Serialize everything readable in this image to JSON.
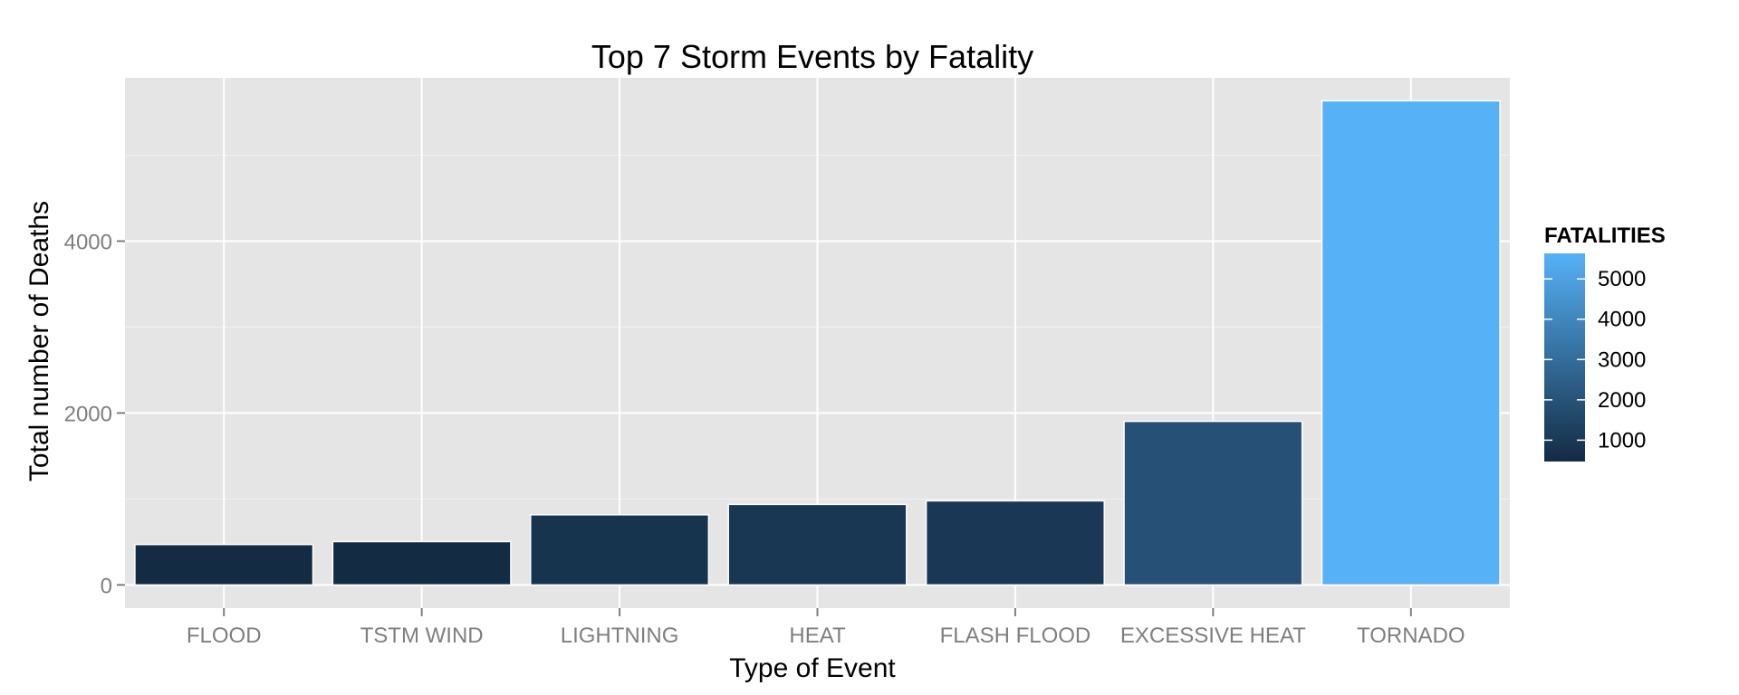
{
  "chart_data": {
    "type": "bar",
    "title": "Top 7 Storm Events by Fatality",
    "xlabel": "Type of Event",
    "ylabel": "Total number of Deaths",
    "categories": [
      "FLOOD",
      "TSTM WIND",
      "LIGHTNING",
      "HEAT",
      "FLASH FLOOD",
      "EXCESSIVE HEAT",
      "TORNADO"
    ],
    "values": [
      470,
      504,
      816,
      937,
      978,
      1903,
      5633
    ],
    "ylim": [
      -270,
      5900
    ],
    "yticks": [
      0,
      2000,
      4000
    ],
    "grid": true,
    "legend": {
      "title": "FATALITIES",
      "placement": "right",
      "ticks": [
        1000,
        2000,
        3000,
        4000,
        5000
      ],
      "range": [
        470,
        5633
      ],
      "low_color": "#132b43",
      "high_color": "#56b1f7"
    },
    "panel_color": "#e5e5e5",
    "grid_color": "#ffffff"
  }
}
